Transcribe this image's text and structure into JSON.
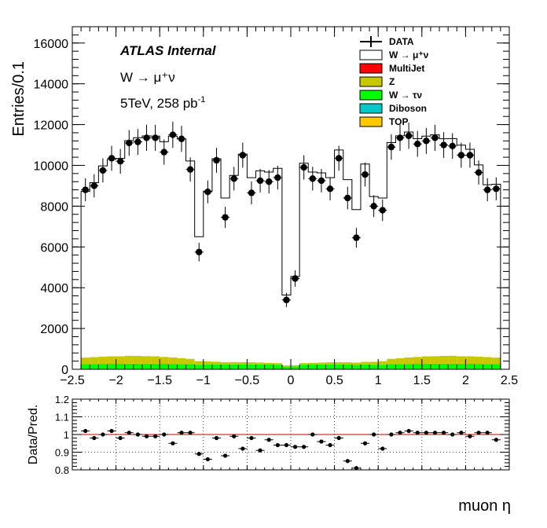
{
  "chart_data": [
    {
      "type": "histogram",
      "xlabel": "muon η",
      "ylabel": "Entries/0.1",
      "xlim": [
        -2.5,
        2.5
      ],
      "ylim": [
        0,
        16800
      ],
      "x_ticks": [
        -2.5,
        -2,
        -1.5,
        -1,
        -0.5,
        0,
        0.5,
        1,
        1.5,
        2,
        2.5
      ],
      "x_tick_labels": [
        "−2.5",
        "−2",
        "−1.5",
        "−1",
        "−0.5",
        "0",
        "0.5",
        "1",
        "1.5",
        "2",
        "2.5"
      ],
      "y_ticks": [
        0,
        2000,
        4000,
        6000,
        8000,
        10000,
        12000,
        14000,
        16000
      ],
      "y_tick_labels": [
        "0",
        "2000",
        "4000",
        "6000",
        "8000",
        "10000",
        "12000",
        "14000",
        "16000"
      ],
      "bin_centers": [
        -2.35,
        -2.25,
        -2.15,
        -2.05,
        -1.95,
        -1.85,
        -1.75,
        -1.65,
        -1.55,
        -1.45,
        -1.35,
        -1.25,
        -1.15,
        -1.05,
        -0.95,
        -0.85,
        -0.75,
        -0.65,
        -0.55,
        -0.45,
        -0.35,
        -0.25,
        -0.15,
        -0.05,
        0.05,
        0.15,
        0.25,
        0.35,
        0.45,
        0.55,
        0.65,
        0.75,
        0.85,
        0.95,
        1.05,
        1.15,
        1.25,
        1.35,
        1.45,
        1.55,
        1.65,
        1.75,
        1.85,
        1.95,
        2.05,
        2.15,
        2.25,
        2.35
      ],
      "stack_order_bottom_to_top": [
        "TOP",
        "Diboson",
        "W → τν",
        "Z",
        "MultiJet",
        "W → μ⁺ν"
      ],
      "series": [
        {
          "name": "DATA",
          "role": "data",
          "color": "#000000",
          "values": [
            8800,
            9000,
            9750,
            10350,
            10200,
            11100,
            11150,
            11350,
            11350,
            10650,
            11500,
            11300,
            9800,
            5750,
            8700,
            10250,
            7450,
            9350,
            10500,
            8650,
            9250,
            9200,
            9400,
            3400,
            4450,
            9900,
            9350,
            9250,
            8850,
            10350,
            8400,
            6450,
            9550,
            8000,
            7800,
            10900,
            11350,
            11450,
            11050,
            11200,
            11350,
            11000,
            10950,
            10500,
            10500,
            9650,
            8800,
            8850
          ]
        },
        {
          "name": "W → μ⁺ν",
          "role": "stack",
          "color": "#ffffff",
          "values": [
            8150,
            8550,
            9350,
            9650,
            9700,
            10550,
            10700,
            10800,
            10800,
            10550,
            10850,
            10750,
            9700,
            6100,
            8350,
            9950,
            8050,
            9150,
            10200,
            9050,
            9400,
            9350,
            9550,
            3450,
            4350,
            9800,
            9350,
            9300,
            9050,
            10400,
            8950,
            7500,
            9700,
            8100,
            8000,
            10600,
            10900,
            11050,
            10700,
            10800,
            10850,
            10650,
            10650,
            10350,
            10150,
            9400,
            8450,
            8500
          ]
        },
        {
          "name": "MultiJet",
          "role": "stack",
          "color": "#ff0000",
          "values": [
            0,
            0,
            0,
            0,
            0,
            0,
            0,
            0,
            0,
            0,
            0,
            0,
            0,
            0,
            0,
            0,
            0,
            0,
            0,
            0,
            0,
            0,
            0,
            0,
            0,
            0,
            0,
            0,
            0,
            0,
            0,
            0,
            0,
            0,
            0,
            0,
            0,
            0,
            0,
            0,
            0,
            0,
            0,
            0,
            0,
            0,
            0,
            0
          ]
        },
        {
          "name": "Z",
          "role": "stack",
          "color": "#c8c800",
          "values": [
            320,
            340,
            360,
            370,
            370,
            390,
            380,
            370,
            360,
            340,
            320,
            290,
            260,
            180,
            150,
            130,
            120,
            120,
            110,
            110,
            100,
            90,
            80,
            60,
            60,
            80,
            90,
            100,
            110,
            110,
            120,
            120,
            130,
            150,
            180,
            260,
            290,
            320,
            340,
            360,
            370,
            380,
            390,
            370,
            370,
            360,
            340,
            320
          ]
        },
        {
          "name": "W → τν",
          "role": "stack",
          "color": "#00ff00",
          "values": [
            230,
            235,
            240,
            245,
            245,
            250,
            250,
            250,
            250,
            245,
            240,
            235,
            230,
            200,
            215,
            225,
            210,
            220,
            225,
            215,
            215,
            210,
            205,
            120,
            130,
            205,
            210,
            215,
            215,
            225,
            210,
            190,
            215,
            200,
            200,
            230,
            235,
            240,
            245,
            250,
            250,
            250,
            250,
            245,
            245,
            240,
            235,
            230
          ]
        },
        {
          "name": "Diboson",
          "role": "stack",
          "color": "#00c8c8",
          "values": [
            15,
            15,
            15,
            15,
            15,
            15,
            15,
            15,
            15,
            15,
            15,
            15,
            15,
            10,
            10,
            10,
            10,
            10,
            10,
            10,
            10,
            10,
            10,
            5,
            5,
            10,
            10,
            10,
            10,
            10,
            10,
            10,
            10,
            10,
            10,
            15,
            15,
            15,
            15,
            15,
            15,
            15,
            15,
            15,
            15,
            15,
            15,
            15
          ]
        },
        {
          "name": "TOP",
          "role": "stack",
          "color": "#ffc800",
          "values": [
            10,
            10,
            10,
            10,
            10,
            10,
            10,
            10,
            10,
            10,
            10,
            10,
            10,
            10,
            10,
            10,
            10,
            10,
            10,
            10,
            10,
            10,
            10,
            5,
            5,
            10,
            10,
            10,
            10,
            10,
            10,
            10,
            10,
            10,
            10,
            10,
            10,
            10,
            10,
            10,
            10,
            10,
            10,
            10,
            10,
            10,
            10,
            10
          ]
        }
      ],
      "legend": {
        "position": "top-right",
        "entries": [
          {
            "label": "DATA",
            "style": "marker",
            "color": "#000000"
          },
          {
            "label": "W → μ⁺ν",
            "style": "fill",
            "color": "#ffffff"
          },
          {
            "label": "MultiJet",
            "style": "fill",
            "color": "#ff0000"
          },
          {
            "label": "Z",
            "style": "fill",
            "color": "#c8c800"
          },
          {
            "label": "W → τν",
            "style": "fill",
            "color": "#00ff00"
          },
          {
            "label": "Diboson",
            "style": "fill",
            "color": "#00c8c8"
          },
          {
            "label": "TOP",
            "style": "fill",
            "color": "#ffc800"
          }
        ]
      },
      "annotations": {
        "experiment": "ATLAS Internal",
        "process": "W → μ⁺ν",
        "energy_prefix": "5TeV, 258 pb",
        "energy_exponent": "-1"
      },
      "grid": false
    },
    {
      "type": "scatter",
      "ylabel": "Data/Pred.",
      "xlim": [
        -2.5,
        2.5
      ],
      "ylim": [
        0.8,
        1.2
      ],
      "y_ticks": [
        0.8,
        0.9,
        1.0,
        1.1,
        1.2
      ],
      "y_tick_labels": [
        "0.8",
        "0.9",
        "1",
        "1.1",
        "1.2"
      ],
      "reference_line": {
        "y": 1.0,
        "color": "#c80000"
      },
      "grid": true,
      "x": [
        -2.35,
        -2.25,
        -2.15,
        -2.05,
        -1.95,
        -1.85,
        -1.75,
        -1.65,
        -1.55,
        -1.45,
        -1.35,
        -1.25,
        -1.15,
        -1.05,
        -0.95,
        -0.85,
        -0.75,
        -0.65,
        -0.55,
        -0.45,
        -0.35,
        -0.25,
        -0.15,
        -0.05,
        0.05,
        0.15,
        0.25,
        0.35,
        0.45,
        0.55,
        0.65,
        0.75,
        0.85,
        0.95,
        1.05,
        1.15,
        1.25,
        1.35,
        1.45,
        1.55,
        1.65,
        1.75,
        1.85,
        1.95,
        2.05,
        2.15,
        2.25,
        2.35
      ],
      "y": [
        1.02,
        0.98,
        1.0,
        1.02,
        0.98,
        1.01,
        1.0,
        0.99,
        0.99,
        1.0,
        0.95,
        1.01,
        1.01,
        0.89,
        0.86,
        0.98,
        0.88,
        0.99,
        0.92,
        0.98,
        0.91,
        0.97,
        0.94,
        0.94,
        0.93,
        0.93,
        1.0,
        0.96,
        0.94,
        0.98,
        0.85,
        0.81,
        0.95,
        1.0,
        0.92,
        1.0,
        1.01,
        1.02,
        1.01,
        1.01,
        1.01,
        1.01,
        1.0,
        1.01,
        0.99,
        1.01,
        1.01,
        0.97
      ]
    }
  ]
}
